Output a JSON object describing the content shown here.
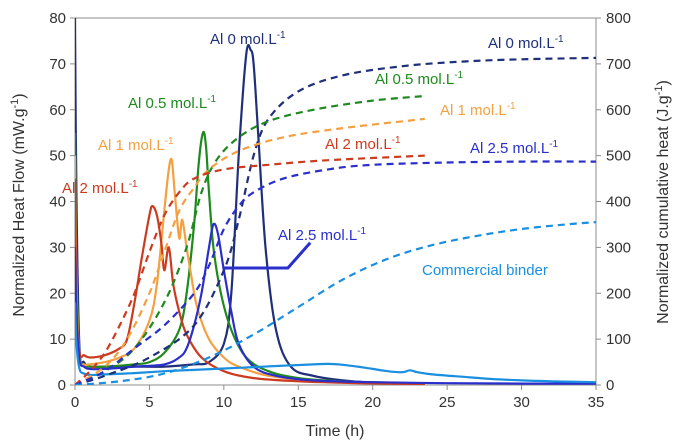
{
  "chart_data": {
    "type": "line",
    "xlabel": "Time (h)",
    "ylabel_left": "Normalized Heat Flow (mW.g",
    "ylabel_left_sup": "-1",
    "ylabel_left_end": ")",
    "ylabel_right": "Normalized cumulative heat (J.g",
    "ylabel_right_sup": "-1",
    "ylabel_right_end": ")",
    "xlim": [
      0,
      35
    ],
    "ylim_left": [
      0,
      80
    ],
    "ylim_right": [
      0,
      800
    ],
    "x_ticks": [
      0,
      5,
      10,
      15,
      20,
      25,
      30,
      35
    ],
    "y_left_ticks": [
      0,
      10,
      20,
      30,
      40,
      50,
      60,
      70,
      80
    ],
    "y_right_ticks": [
      0,
      100,
      200,
      300,
      400,
      500,
      600,
      700,
      800
    ],
    "colors": {
      "al0": "#1f2f7a",
      "al05": "#1e8a1e",
      "al1": "#f5a040",
      "al2": "#cc3b1f",
      "al25": "#2a2fcc",
      "commercial": "#1a8fe0"
    },
    "heat_flow_series": [
      {
        "key": "al0",
        "x": [
          0,
          0.1,
          0.3,
          0.6,
          1,
          2,
          4,
          6,
          8,
          9,
          10,
          10.5,
          11,
          11.5,
          11.8,
          12,
          12.3,
          12.8,
          13.5,
          14.5,
          16,
          18,
          20,
          23.5
        ],
        "y": [
          80,
          40,
          8,
          5,
          4,
          4,
          4,
          4,
          4.5,
          5,
          9,
          20,
          50,
          72,
          73,
          70,
          55,
          30,
          12,
          4,
          2,
          1,
          0.5,
          0.3
        ]
      },
      {
        "key": "al05",
        "x": [
          0,
          0.1,
          0.3,
          0.6,
          1,
          2,
          4,
          5,
          6,
          7,
          7.5,
          8,
          8.3,
          8.6,
          8.8,
          9,
          9.3,
          9.8,
          10.5,
          11.5,
          13,
          15,
          18,
          23.5
        ],
        "y": [
          55,
          25,
          7,
          4.5,
          4,
          4,
          4.5,
          5,
          7,
          12,
          20,
          35,
          48,
          55,
          52,
          42,
          30,
          20,
          12,
          6,
          3,
          1.5,
          0.8,
          0.3
        ]
      },
      {
        "key": "al1",
        "x": [
          0,
          0.1,
          0.3,
          0.6,
          1,
          2,
          3,
          4,
          5,
          5.5,
          6,
          6.3,
          6.5,
          6.7,
          7,
          7.2,
          7.5,
          7.8,
          8.2,
          9,
          10,
          11,
          13,
          16,
          20,
          23.5
        ],
        "y": [
          50,
          22,
          6,
          4.5,
          4.5,
          5,
          6,
          8,
          14,
          22,
          38,
          47,
          49,
          42,
          32,
          36,
          30,
          24,
          17,
          10,
          6,
          4,
          2,
          1,
          0.5,
          0.3
        ]
      },
      {
        "key": "al2",
        "x": [
          0,
          0.1,
          0.3,
          0.6,
          1,
          2,
          3,
          3.5,
          4,
          4.5,
          5,
          5.2,
          5.5,
          5.8,
          6,
          6.3,
          6.6,
          7,
          7.5,
          8.5,
          10,
          12,
          15,
          19,
          23.5
        ],
        "y": [
          45,
          18,
          7,
          6.5,
          6,
          6.5,
          8,
          10,
          18,
          28,
          37,
          39,
          37,
          31,
          25,
          30,
          22,
          16,
          11,
          6,
          3,
          1.5,
          0.8,
          0.4,
          0.2
        ]
      },
      {
        "key": "al25",
        "x": [
          0,
          0.1,
          0.3,
          0.6,
          1,
          2,
          4,
          6,
          7,
          7.5,
          8,
          8.5,
          9,
          9.3,
          9.6,
          10,
          10.5,
          11,
          12,
          13.5,
          16,
          20,
          25,
          30,
          35
        ],
        "y": [
          30,
          15,
          5.5,
          4,
          3.5,
          3.5,
          4,
          4.5,
          6,
          8,
          13,
          20,
          30,
          35,
          33,
          25,
          16,
          9,
          4,
          2,
          1,
          0.6,
          0.4,
          0.3,
          0.3
        ]
      },
      {
        "key": "commercial",
        "x": [
          0,
          0.1,
          0.3,
          0.6,
          1,
          2,
          4,
          6,
          8,
          10,
          12,
          14,
          16,
          17,
          18,
          19,
          20,
          21,
          22,
          22.5,
          23,
          24,
          26,
          28,
          30,
          32,
          35
        ],
        "y": [
          18,
          9,
          3.5,
          2.5,
          2.2,
          2.3,
          2.6,
          3,
          3.3,
          3.6,
          3.9,
          4.2,
          4.5,
          4.6,
          4.4,
          4,
          3.5,
          3,
          2.8,
          3.2,
          2.8,
          2.3,
          1.8,
          1.3,
          1,
          0.8,
          0.6
        ]
      }
    ],
    "cumulative_heat_series": [
      {
        "key": "al0",
        "x": [
          0,
          2,
          5,
          8,
          10,
          11,
          12,
          13,
          15,
          18,
          22,
          26,
          30,
          35
        ],
        "y": [
          0,
          20,
          60,
          130,
          250,
          360,
          500,
          580,
          640,
          675,
          695,
          705,
          710,
          713
        ]
      },
      {
        "key": "al05",
        "x": [
          0,
          2,
          4,
          6,
          7.5,
          8.5,
          9.5,
          11,
          13,
          16,
          20,
          23.5
        ],
        "y": [
          0,
          30,
          80,
          180,
          300,
          420,
          490,
          540,
          575,
          600,
          620,
          630
        ]
      },
      {
        "key": "al1",
        "x": [
          0,
          2,
          3.5,
          5,
          6,
          7,
          8,
          9,
          11,
          14,
          18,
          23.5
        ],
        "y": [
          0,
          40,
          100,
          200,
          290,
          380,
          430,
          470,
          510,
          540,
          560,
          580
        ]
      },
      {
        "key": "al2",
        "x": [
          0,
          1,
          2,
          3,
          4,
          5,
          6,
          7,
          8,
          10,
          13,
          17,
          23.5
        ],
        "y": [
          0,
          30,
          70,
          130,
          200,
          290,
          370,
          420,
          450,
          470,
          480,
          490,
          500
        ]
      },
      {
        "key": "al25",
        "x": [
          0,
          2,
          4,
          6,
          8,
          9,
          10,
          11,
          12,
          14,
          17,
          20,
          25,
          30,
          35
        ],
        "y": [
          0,
          30,
          80,
          130,
          200,
          260,
          340,
          390,
          420,
          450,
          470,
          480,
          485,
          487,
          487
        ]
      },
      {
        "key": "commercial",
        "x": [
          0,
          3,
          6,
          9,
          12,
          15,
          18,
          21,
          24,
          27,
          30,
          33,
          35
        ],
        "y": [
          0,
          8,
          25,
          60,
          110,
          170,
          230,
          275,
          305,
          325,
          340,
          350,
          355
        ]
      }
    ],
    "annotations": [
      {
        "key": "al0",
        "text": "Al 0 mol.L",
        "sup": "-1"
      },
      {
        "key": "al0",
        "text": "Al 0 mol.L",
        "sup": "-1"
      },
      {
        "key": "al05",
        "text": "Al 0.5 mol.L",
        "sup": "-1"
      },
      {
        "key": "al05",
        "text": "Al 0.5 mol.L",
        "sup": "-1"
      },
      {
        "key": "al1",
        "text": "Al 1 mol.L",
        "sup": "-1"
      },
      {
        "key": "al1",
        "text": "Al 1 mol.L",
        "sup": "-1"
      },
      {
        "key": "al2",
        "text": "Al 2 mol.L",
        "sup": "-1"
      },
      {
        "key": "al2",
        "text": "Al 2 mol.L",
        "sup": "-1"
      },
      {
        "key": "al25",
        "text": "Al 2.5 mol.L",
        "sup": "-1"
      },
      {
        "key": "al25",
        "text": "Al 2.5 mol.L",
        "sup": "-1"
      },
      {
        "key": "commercial",
        "text": "Commercial binder",
        "sup": ""
      }
    ],
    "grid": false
  }
}
